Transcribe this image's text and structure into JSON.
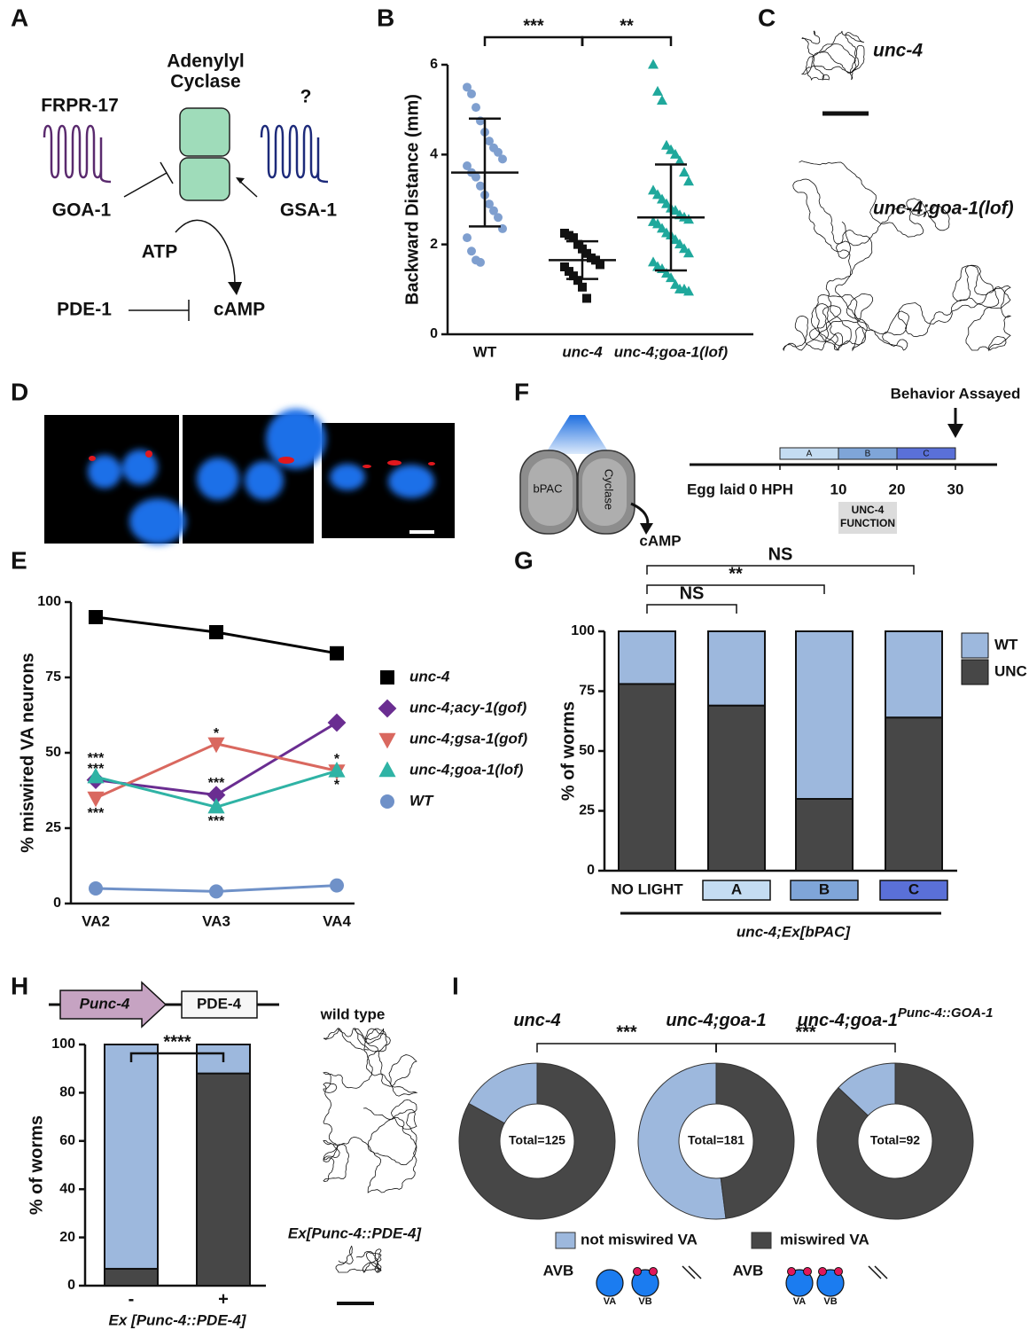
{
  "panel_labels": [
    "A",
    "B",
    "C",
    "D",
    "E",
    "F",
    "G",
    "H",
    "I"
  ],
  "diagram_a": {
    "cyclase": [
      "Adenylyl",
      "Cyclase"
    ],
    "receptor_left": "FRPR-17",
    "receptor_right": "?",
    "g_left": "GOA-1",
    "g_right": "GSA-1",
    "substrate": "ATP",
    "pde": "PDE-1",
    "product": "cAMP"
  },
  "panel_c": {
    "tracks": [
      "unc-4",
      "unc-4;goa-1(lof)"
    ]
  },
  "panel_f": {
    "labels": {
      "left": "bPAC",
      "right": "Cyclase",
      "product": "cAMP"
    },
    "timeline": {
      "marker": "Behavior Assayed",
      "start": "Egg laid",
      "ticks": [
        {
          "value": 0,
          "label": "0 HPH"
        },
        10,
        20,
        30
      ],
      "periods": [
        {
          "name": "A",
          "start": 0,
          "end": 10,
          "color": "#c4dcf2"
        },
        {
          "name": "B",
          "start": 10,
          "end": 20,
          "color": "#7fa5d8"
        },
        {
          "name": "C",
          "start": 20,
          "end": 30,
          "color": "#5a70d8"
        }
      ],
      "function": {
        "label": [
          "UNC-4",
          "FUNCTION"
        ],
        "start": 10,
        "end": 20
      },
      "assay_time": 30
    }
  },
  "panel_h": {
    "construct": [
      "Punc-4",
      "PDE-4"
    ],
    "tracks": [
      "wild type",
      "Ex[Punc-4::PDE-4]"
    ]
  },
  "chart_data": [
    {
      "type": "strip",
      "ylabel": "Backward Distance (mm)",
      "categories": [
        "WT",
        "unc-4",
        "unc-4;goa-1(lof)"
      ],
      "ylim": [
        0,
        6
      ],
      "yticks": [
        0,
        2,
        4,
        6
      ],
      "series": [
        {
          "color": "#7f9fcf",
          "marker": "circle",
          "mean": 3.6,
          "sd": 1.2,
          "values": [
            5.5,
            5.35,
            5.05,
            4.75,
            4.5,
            4.3,
            4.15,
            4.05,
            3.9,
            3.75,
            3.6,
            3.5,
            3.3,
            3.1,
            2.9,
            2.75,
            2.6,
            2.35,
            2.15,
            1.85,
            1.65,
            1.6
          ]
        },
        {
          "color": "#111111",
          "marker": "square",
          "mean": 1.65,
          "sd": 0.42,
          "values": [
            2.25,
            2.2,
            2.15,
            2.0,
            1.9,
            1.8,
            1.7,
            1.65,
            1.55,
            1.5,
            1.4,
            1.3,
            1.2,
            1.05,
            0.8
          ]
        },
        {
          "color": "#1fa89c",
          "marker": "triangle-up",
          "mean": 2.6,
          "sd": 1.18,
          "values": [
            6.0,
            5.4,
            5.2,
            4.2,
            4.1,
            4.0,
            3.85,
            3.6,
            3.4,
            3.2,
            3.1,
            3.0,
            2.9,
            2.8,
            2.75,
            2.65,
            2.6,
            2.55,
            2.5,
            2.45,
            2.35,
            2.25,
            2.2,
            2.1,
            2.0,
            1.9,
            1.8,
            1.6,
            1.5,
            1.45,
            1.35,
            1.25,
            1.1,
            1.0,
            1.0,
            0.95
          ]
        }
      ],
      "comparisons": [
        {
          "label": "***",
          "from": 0,
          "to": 1
        },
        {
          "label": "**",
          "from": 1,
          "to": 2
        }
      ]
    },
    {
      "type": "line",
      "ylabel": "% miswired VA neurons",
      "categories": [
        "VA2",
        "VA3",
        "VA4"
      ],
      "ylim": [
        0,
        100
      ],
      "yticks": [
        0,
        25,
        50,
        75,
        100
      ],
      "series": [
        {
          "name": "unc-4",
          "color": "#000000",
          "marker": "square",
          "values": [
            95,
            90,
            83
          ]
        },
        {
          "name": "unc-4;acy-1(gof)",
          "color": "#6a2d91",
          "marker": "diamond",
          "values": [
            41,
            36,
            60
          ]
        },
        {
          "name": "unc-4;gsa-1(gof)",
          "color": "#d9685f",
          "marker": "triangle-down",
          "values": [
            35,
            53,
            44
          ]
        },
        {
          "name": "unc-4;goa-1(lof)",
          "color": "#2fb3a5",
          "marker": "triangle-up",
          "values": [
            42,
            32,
            44
          ]
        },
        {
          "name": "WT",
          "color": "#6f91c8",
          "marker": "circle",
          "values": [
            5,
            4,
            6
          ]
        }
      ],
      "annotations": [
        "***",
        "***",
        "***",
        "*",
        "***",
        "***",
        "*",
        "*"
      ]
    },
    {
      "type": "stacked_bar",
      "ylabel": "% of worms",
      "xlabel": "unc-4;Ex[bPAC]",
      "categories": [
        "NO LIGHT",
        "A",
        "B",
        "C"
      ],
      "ylim": [
        0,
        100
      ],
      "yticks": [
        0,
        25,
        50,
        75,
        100
      ],
      "legend": true,
      "series": [
        {
          "name": "UNC",
          "color": "#474747",
          "values": [
            78,
            69,
            30,
            64
          ]
        },
        {
          "name": "WT",
          "color": "#9db8dd",
          "values": [
            22,
            31,
            70,
            36
          ]
        }
      ],
      "comparisons": [
        {
          "label": "NS",
          "from": 0,
          "to": 1
        },
        {
          "label": "**",
          "from": 0,
          "to": 2
        },
        {
          "label": "NS",
          "from": 0,
          "to": 3
        }
      ]
    },
    {
      "type": "stacked_bar",
      "ylabel": "% of worms",
      "xlabel": "Ex [Punc-4::PDE-4]",
      "categories": [
        "-",
        "+"
      ],
      "ylim": [
        0,
        100
      ],
      "yticks": [
        0,
        20,
        40,
        60,
        80,
        100
      ],
      "legend": false,
      "series": [
        {
          "color": "#474747",
          "values": [
            7,
            88
          ]
        },
        {
          "color": "#9db8dd",
          "values": [
            93,
            12
          ]
        }
      ],
      "comparisons": [
        {
          "label": "****",
          "from": 0,
          "to": 1
        }
      ]
    },
    {
      "type": "donut",
      "categories": [
        "not miswired VA",
        "miswired VA"
      ],
      "colors": [
        "#9db8dd",
        "#474747"
      ],
      "pies": [
        {
          "title": "unc-4",
          "total": "Total=125",
          "values": [
            17,
            83
          ]
        },
        {
          "title": "unc-4;goa-1",
          "total": "Total=181",
          "values": [
            52,
            48
          ]
        },
        {
          "title": "unc-4;goa-1",
          "title_sup": "Punc-4::GOA-1",
          "total": "Total=92",
          "values": [
            13,
            87
          ]
        }
      ],
      "comparisons": [
        {
          "label": "***",
          "from": 0,
          "to": 1
        },
        {
          "label": "***",
          "from": 1,
          "to": 2
        }
      ],
      "cartoon": [
        {
          "label": "AVB",
          "cells": [
            "VA",
            "VB"
          ]
        },
        {
          "label": "AVB",
          "cells": [
            "VA",
            "VB"
          ]
        }
      ]
    }
  ]
}
